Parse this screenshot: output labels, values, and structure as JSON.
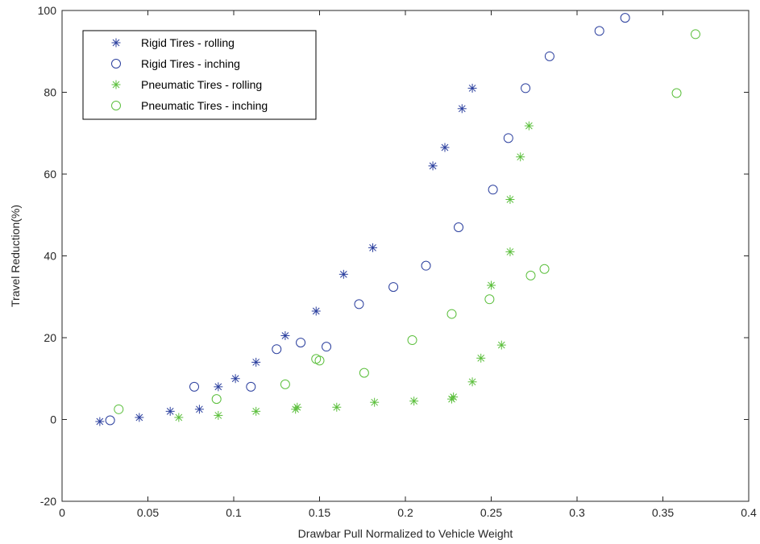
{
  "chart_data": {
    "type": "scatter",
    "title": "",
    "xlabel": "Drawbar Pull Normalized to Vehicle Weight",
    "ylabel": "Travel Reduction(%)",
    "xlim": [
      0,
      0.4
    ],
    "ylim": [
      -20,
      100
    ],
    "xticks": [
      0,
      0.05,
      0.1,
      0.15,
      0.2,
      0.25,
      0.3,
      0.35,
      0.4
    ],
    "xtick_labels": [
      "0",
      "0.05",
      "0.1",
      "0.15",
      "0.2",
      "0.25",
      "0.3",
      "0.35",
      "0.4"
    ],
    "yticks": [
      -20,
      0,
      20,
      40,
      60,
      80,
      100
    ],
    "ytick_labels": [
      "-20",
      "0",
      "20",
      "40",
      "60",
      "80",
      "100"
    ],
    "grid": false,
    "legend_position": "top-left",
    "series": [
      {
        "name": "Rigid Tires - rolling",
        "marker": "star",
        "color": "#2b3f9e",
        "points": [
          [
            0.022,
            -0.5
          ],
          [
            0.045,
            0.5
          ],
          [
            0.063,
            2.0
          ],
          [
            0.08,
            2.5
          ],
          [
            0.091,
            8.0
          ],
          [
            0.101,
            10.0
          ],
          [
            0.113,
            14.0
          ],
          [
            0.13,
            20.5
          ],
          [
            0.148,
            26.5
          ],
          [
            0.164,
            35.5
          ],
          [
            0.181,
            42.0
          ],
          [
            0.216,
            62.0
          ],
          [
            0.223,
            66.5
          ],
          [
            0.233,
            76.0
          ],
          [
            0.239,
            81.0
          ]
        ]
      },
      {
        "name": "Rigid Tires - inching",
        "marker": "circle",
        "color": "#2b3f9e",
        "points": [
          [
            0.028,
            -0.2
          ],
          [
            0.077,
            8.0
          ],
          [
            0.11,
            8.0
          ],
          [
            0.125,
            17.2
          ],
          [
            0.139,
            18.8
          ],
          [
            0.154,
            17.8
          ],
          [
            0.173,
            28.2
          ],
          [
            0.193,
            32.4
          ],
          [
            0.212,
            37.6
          ],
          [
            0.231,
            47.0
          ],
          [
            0.251,
            56.2
          ],
          [
            0.26,
            68.8
          ],
          [
            0.27,
            81.0
          ],
          [
            0.284,
            88.8
          ],
          [
            0.313,
            95.0
          ],
          [
            0.328,
            98.2
          ]
        ]
      },
      {
        "name": "Pneumatic Tires - rolling",
        "marker": "star",
        "color": "#5bbf3c",
        "points": [
          [
            0.068,
            0.5
          ],
          [
            0.091,
            1.0
          ],
          [
            0.113,
            2.0
          ],
          [
            0.136,
            2.5
          ],
          [
            0.137,
            3.0
          ],
          [
            0.16,
            3.0
          ],
          [
            0.182,
            4.2
          ],
          [
            0.205,
            4.5
          ],
          [
            0.227,
            5.0
          ],
          [
            0.228,
            5.5
          ],
          [
            0.239,
            9.2
          ],
          [
            0.244,
            15.0
          ],
          [
            0.256,
            18.2
          ],
          [
            0.25,
            32.8
          ],
          [
            0.261,
            41.0
          ],
          [
            0.261,
            53.8
          ],
          [
            0.267,
            64.2
          ],
          [
            0.272,
            71.8
          ]
        ]
      },
      {
        "name": "Pneumatic Tires - inching",
        "marker": "circle",
        "color": "#5bbf3c",
        "points": [
          [
            0.033,
            2.5
          ],
          [
            0.09,
            5.0
          ],
          [
            0.13,
            8.6
          ],
          [
            0.148,
            14.8
          ],
          [
            0.15,
            14.4
          ],
          [
            0.176,
            11.4
          ],
          [
            0.204,
            19.4
          ],
          [
            0.227,
            25.8
          ],
          [
            0.249,
            29.4
          ],
          [
            0.273,
            35.2
          ],
          [
            0.281,
            36.8
          ],
          [
            0.358,
            79.8
          ],
          [
            0.369,
            94.2
          ]
        ]
      }
    ]
  }
}
